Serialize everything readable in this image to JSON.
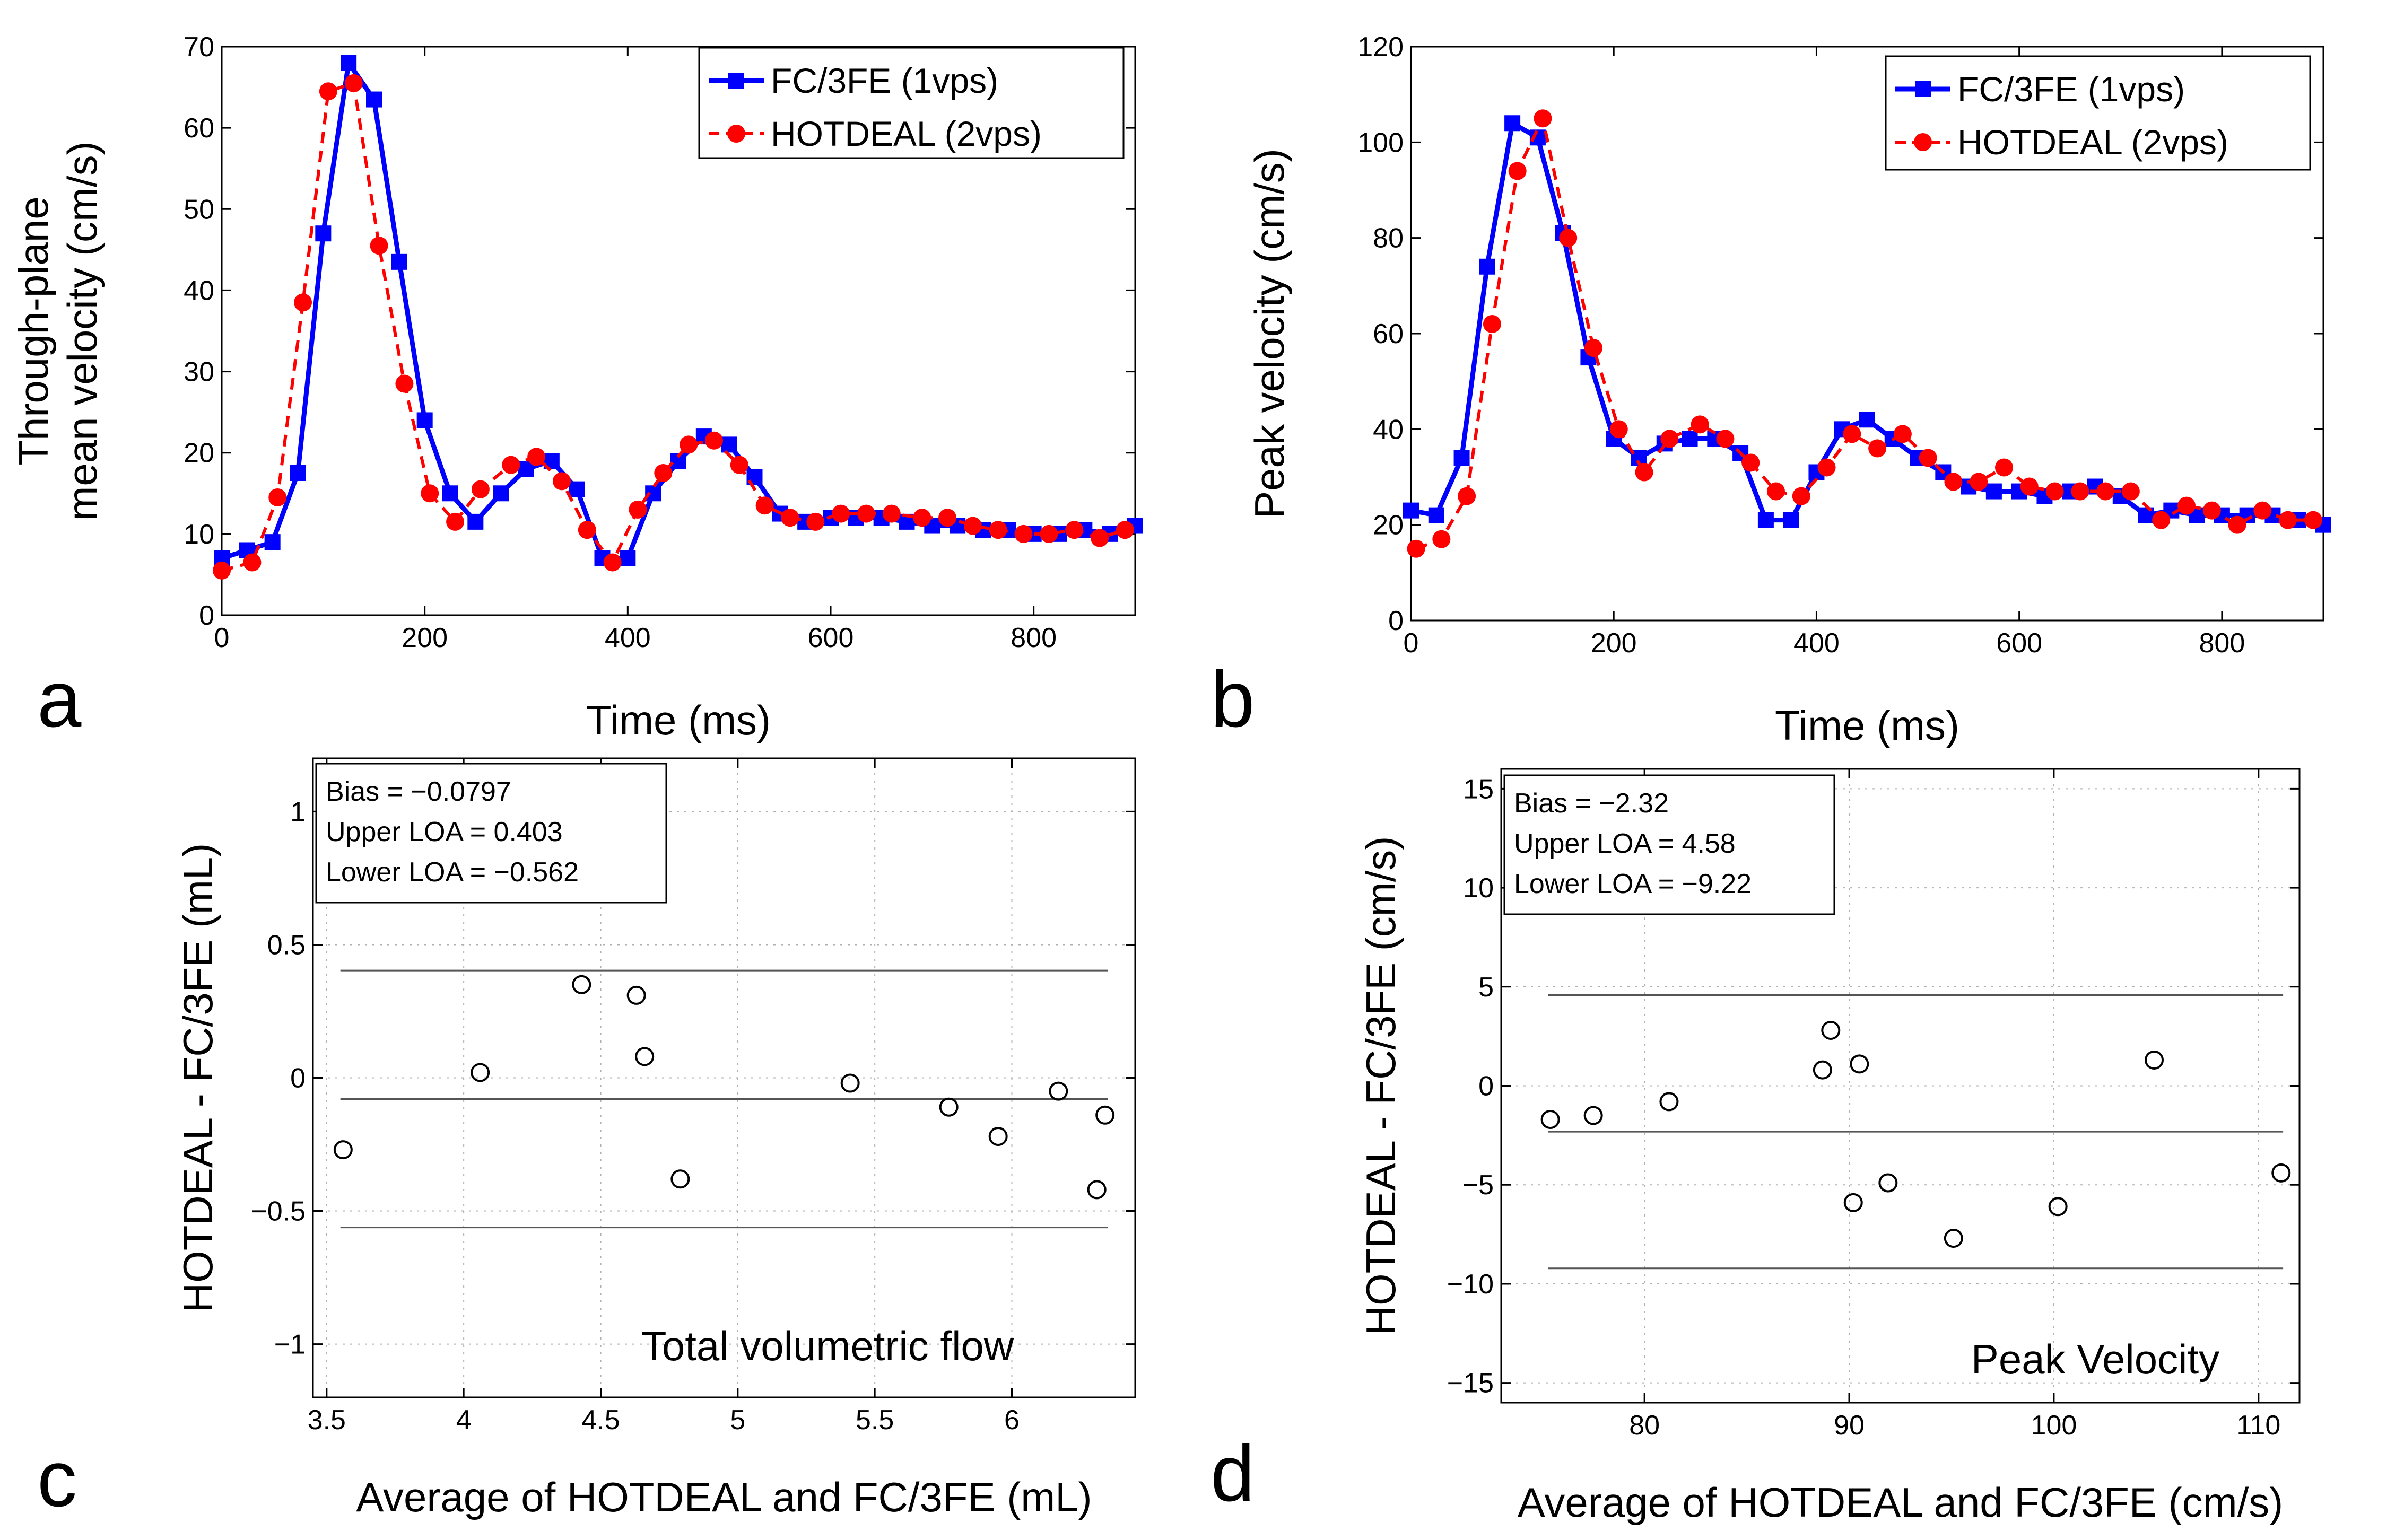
{
  "chart_data": [
    {
      "id": "a",
      "type": "line",
      "panel_label": "a",
      "title": "",
      "xlabel": "Time (ms)",
      "ylabel_lines": [
        "Through-plane",
        "mean velocity (cm/s)"
      ],
      "xlim": [
        0,
        900
      ],
      "ylim": [
        0,
        70
      ],
      "xticks": [
        0,
        200,
        400,
        600,
        800
      ],
      "yticks": [
        0,
        10,
        20,
        30,
        40,
        50,
        60,
        70
      ],
      "grid": false,
      "legend_position": "top-right",
      "series": [
        {
          "name": "FC/3FE (1vps)",
          "color": "#0000ff",
          "marker": "square",
          "line": "solid",
          "x": [
            0,
            25,
            50,
            75,
            100,
            125,
            150,
            175,
            200,
            225,
            250,
            275,
            300,
            325,
            350,
            375,
            400,
            425,
            450,
            475,
            500,
            525,
            550,
            575,
            600,
            625,
            650,
            675,
            700,
            725,
            750,
            775,
            800,
            825,
            850,
            875,
            900
          ],
          "y": [
            7,
            8,
            9,
            17.5,
            47,
            68,
            63.5,
            43.5,
            24,
            15,
            11.5,
            15,
            18,
            19,
            15.5,
            7,
            7,
            15,
            19,
            22,
            21,
            17,
            12.5,
            11.5,
            12,
            12,
            12,
            11.5,
            11,
            11,
            10.5,
            10.5,
            10,
            10,
            10.5,
            10,
            11
          ]
        },
        {
          "name": "HOTDEAL (2vps)",
          "color": "#ff0000",
          "marker": "circle",
          "line": "dashed",
          "x": [
            0,
            30,
            55,
            80,
            105,
            130,
            155,
            180,
            205,
            230,
            255,
            285,
            310,
            335,
            360,
            385,
            410,
            435,
            460,
            485,
            510,
            535,
            560,
            585,
            610,
            635,
            660,
            690,
            715,
            740,
            765,
            790,
            815,
            840,
            865,
            890
          ],
          "y": [
            5.5,
            6.5,
            14.5,
            38.5,
            64.5,
            65.5,
            45.5,
            28.5,
            15,
            11.5,
            15.5,
            18.5,
            19.5,
            16.5,
            10.5,
            6.5,
            13,
            17.5,
            21,
            21.5,
            18.5,
            13.5,
            12,
            11.5,
            12.5,
            12.5,
            12.5,
            12,
            12,
            11,
            10.5,
            10,
            10,
            10.5,
            9.5,
            10.5
          ]
        }
      ]
    },
    {
      "id": "b",
      "type": "line",
      "panel_label": "b",
      "title": "",
      "xlabel": "Time (ms)",
      "ylabel_lines": [
        "Peak velocity (cm/s)"
      ],
      "xlim": [
        0,
        900
      ],
      "ylim": [
        0,
        120
      ],
      "xticks": [
        0,
        200,
        400,
        600,
        800
      ],
      "yticks": [
        0,
        20,
        40,
        60,
        80,
        100,
        120
      ],
      "grid": false,
      "legend_position": "top-right",
      "series": [
        {
          "name": "FC/3FE (1vps)",
          "color": "#0000ff",
          "marker": "square",
          "line": "solid",
          "x": [
            0,
            25,
            50,
            75,
            100,
            125,
            150,
            175,
            200,
            225,
            250,
            275,
            300,
            325,
            350,
            375,
            400,
            425,
            450,
            475,
            500,
            525,
            550,
            575,
            600,
            625,
            650,
            675,
            700,
            725,
            750,
            775,
            800,
            825,
            850,
            875,
            900
          ],
          "y": [
            23,
            22,
            34,
            74,
            104,
            101,
            81,
            55,
            38,
            34,
            37,
            38,
            38,
            35,
            21,
            21,
            31,
            40,
            42,
            38,
            34,
            31,
            28,
            27,
            27,
            26,
            27,
            28,
            26,
            22,
            23,
            22,
            22,
            22,
            22,
            21,
            20
          ]
        },
        {
          "name": "HOTDEAL (2vps)",
          "color": "#ff0000",
          "marker": "circle",
          "line": "dashed",
          "x": [
            5,
            30,
            55,
            80,
            105,
            130,
            155,
            180,
            205,
            230,
            255,
            285,
            310,
            335,
            360,
            385,
            410,
            435,
            460,
            485,
            510,
            535,
            560,
            585,
            610,
            635,
            660,
            685,
            710,
            740,
            765,
            790,
            815,
            840,
            865,
            890
          ],
          "y": [
            15,
            17,
            26,
            62,
            94,
            105,
            80,
            57,
            40,
            31,
            38,
            41,
            38,
            33,
            27,
            26,
            32,
            39,
            36,
            39,
            34,
            29,
            29,
            32,
            28,
            27,
            27,
            27,
            27,
            21,
            24,
            23,
            20,
            23,
            21,
            21
          ]
        }
      ]
    },
    {
      "id": "c",
      "type": "scatter",
      "panel_label": "c",
      "title": "",
      "annotation": "Total volumetric flow",
      "xlabel": "Average of HOTDEAL and FC/3FE (mL)",
      "ylabel_lines": [
        "HOTDEAL - FC/3FE (mL)"
      ],
      "xlim": [
        3.45,
        6.45
      ],
      "ylim": [
        -1.2,
        1.2
      ],
      "xticks": [
        3.5,
        4,
        4.5,
        5,
        5.5,
        6
      ],
      "xticklabels": [
        "3.5",
        "4",
        "4.5",
        "5",
        "5.5",
        "6"
      ],
      "yticks": [
        -1,
        -0.5,
        0,
        0.5,
        1
      ],
      "yticklabels": [
        "−1",
        "−0.5",
        "0",
        "0.5",
        "1"
      ],
      "grid": true,
      "stats": {
        "bias_label": "Bias = −0.0797",
        "upper_label": "Upper LOA = 0.403",
        "lower_label": "Lower LOA = −0.562",
        "bias": -0.0797,
        "upper_loa": 0.403,
        "lower_loa": -0.562
      },
      "line_x_range": [
        3.55,
        6.35
      ],
      "points": {
        "x": [
          3.56,
          4.06,
          4.43,
          4.63,
          4.66,
          4.79,
          5.41,
          5.77,
          5.95,
          6.17,
          6.31,
          6.34
        ],
        "y": [
          -0.27,
          0.02,
          0.35,
          0.31,
          0.08,
          -0.38,
          -0.02,
          -0.11,
          -0.22,
          -0.05,
          -0.42,
          -0.14
        ]
      }
    },
    {
      "id": "d",
      "type": "scatter",
      "panel_label": "d",
      "title": "",
      "annotation": "Peak Velocity",
      "xlabel": "Average of HOTDEAL and FC/3FE (cm/s)",
      "ylabel_lines": [
        "HOTDEAL - FC/3FE (cm/s)"
      ],
      "xlim": [
        73,
        112
      ],
      "ylim": [
        -16,
        16
      ],
      "xticks": [
        80,
        90,
        100,
        110
      ],
      "xticklabels": [
        "80",
        "90",
        "100",
        "110"
      ],
      "yticks": [
        -15,
        -10,
        -5,
        0,
        5,
        10,
        15
      ],
      "yticklabels": [
        "−15",
        "−10",
        "−5",
        "0",
        "5",
        "10",
        "15"
      ],
      "grid": true,
      "stats": {
        "bias_label": "Bias = −2.32",
        "upper_label": "Upper LOA = 4.58",
        "lower_label": "Lower LOA = −9.22",
        "bias": -2.32,
        "upper_loa": 4.58,
        "lower_loa": -9.22
      },
      "line_x_range": [
        75.3,
        111.2
      ],
      "points": {
        "x": [
          75.4,
          77.5,
          81.2,
          88.7,
          89.1,
          90.2,
          90.5,
          91.9,
          95.1,
          100.2,
          104.9,
          111.1
        ],
        "y": [
          -1.7,
          -1.5,
          -0.8,
          0.8,
          2.8,
          -5.9,
          1.1,
          -4.9,
          -7.7,
          -6.1,
          1.3,
          -4.4
        ]
      }
    }
  ]
}
